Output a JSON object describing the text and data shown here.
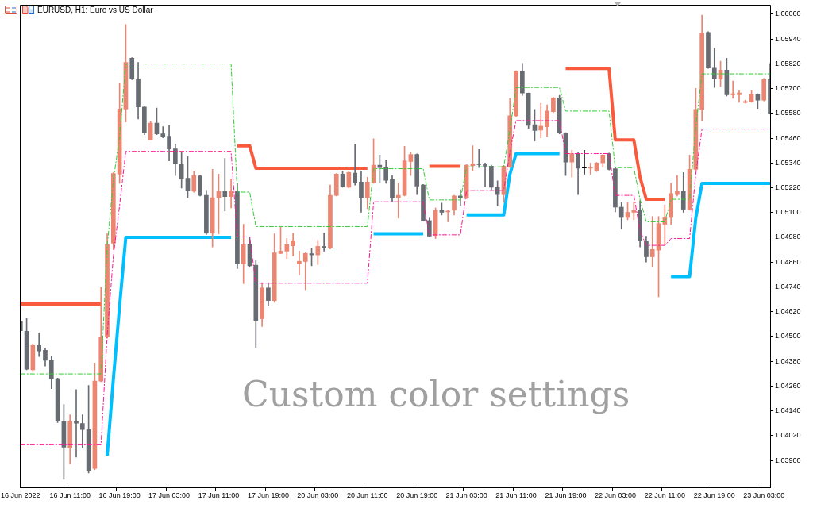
{
  "chart_data": {
    "type": "candlestick",
    "title": "EURUSD, H1: Euro vs US Dollar",
    "annotations": [
      "Custom color settings"
    ],
    "categories": [
      "16 Jun 2022",
      null,
      null,
      null,
      null,
      null,
      null,
      null,
      "16 Jun 11:00",
      null,
      null,
      null,
      null,
      null,
      null,
      null,
      "16 Jun 19:00",
      null,
      null,
      null,
      null,
      null,
      null,
      null,
      "17 Jun 03:00",
      null,
      null,
      null,
      null,
      null,
      null,
      null,
      "17 Jun 11:00",
      null,
      null,
      null,
      null,
      null,
      null,
      null,
      "17 Jun 19:00",
      null,
      null,
      null,
      null,
      null,
      null,
      null,
      "20 Jun 03:00",
      null,
      null,
      null,
      null,
      null,
      null,
      null,
      "20 Jun 11:00",
      null,
      null,
      null,
      null,
      null,
      null,
      null,
      "20 Jun 19:00",
      null,
      null,
      null,
      null,
      null,
      null,
      null,
      "21 Jun 03:00",
      null,
      null,
      null,
      null,
      null,
      null,
      null,
      "21 Jun 11:00",
      null,
      null,
      null,
      null,
      null,
      null,
      null,
      "21 Jun 19:00",
      null,
      null,
      null,
      null,
      null,
      null,
      null,
      "22 Jun 03:00",
      null,
      null,
      null,
      null,
      null,
      null,
      null,
      "22 Jun 11:00",
      null,
      null,
      null,
      null,
      null,
      null,
      null,
      "22 Jun 19:00",
      null,
      null,
      null,
      null,
      null,
      null,
      null,
      "23 Jun 03:00",
      null
    ],
    "ohlc": [
      [
        1.04574,
        1.04586,
        1.04517,
        1.04528
      ],
      [
        1.04525,
        1.04589,
        1.04339,
        1.04342
      ],
      [
        1.04339,
        1.04464,
        1.0433,
        1.04456
      ],
      [
        1.04456,
        1.04517,
        1.04403,
        1.0443
      ],
      [
        1.04433,
        1.04444,
        1.04357,
        1.04385
      ],
      [
        1.04385,
        1.04403,
        1.04248,
        1.04296
      ],
      [
        1.04296,
        1.04299,
        1.04083,
        1.04091
      ],
      [
        1.04088,
        1.04171,
        1.03809,
        1.03964
      ],
      [
        1.03961,
        1.04121,
        1.03885,
        1.04091
      ],
      [
        1.04091,
        1.04243,
        1.03916,
        1.0408
      ],
      [
        1.04079,
        1.04121,
        1.03961,
        1.0405
      ],
      [
        1.0405,
        1.04263,
        1.03839,
        1.03852
      ],
      [
        1.03862,
        1.04372,
        1.03855,
        1.04284
      ],
      [
        1.04284,
        1.04738,
        1.04281,
        1.04499
      ],
      [
        1.04497,
        1.04997,
        1.04491,
        1.04944
      ],
      [
        1.04951,
        1.05294,
        1.04921,
        1.05289
      ],
      [
        1.05286,
        1.05728,
        1.05241,
        1.05601
      ],
      [
        1.05601,
        1.0601,
        1.05538,
        1.05827
      ],
      [
        1.05847,
        1.0585,
        1.05743,
        1.05746
      ],
      [
        1.05746,
        1.05827,
        1.05553,
        1.05611
      ],
      [
        1.05611,
        1.05614,
        1.05477,
        1.05484
      ],
      [
        1.05454,
        1.05542,
        1.05451,
        1.05533
      ],
      [
        1.05533,
        1.05606,
        1.05477,
        1.05481
      ],
      [
        1.05481,
        1.05515,
        1.05461,
        1.05466
      ],
      [
        1.05469,
        1.05522,
        1.0535,
        1.05408
      ],
      [
        1.05408,
        1.05431,
        1.05279,
        1.05336
      ],
      [
        1.05336,
        1.0539,
        1.05218,
        1.05263
      ],
      [
        1.05266,
        1.0537,
        1.05172,
        1.05206
      ],
      [
        1.05203,
        1.05301,
        1.05198,
        1.05279
      ],
      [
        1.05277,
        1.05282,
        1.0518,
        1.05183
      ],
      [
        1.05183,
        1.05207,
        1.04994,
        1.05
      ],
      [
        1.05,
        1.05309,
        1.04933,
        1.05172
      ],
      [
        1.05172,
        1.05286,
        1.04997,
        1.05203
      ],
      [
        1.05203,
        1.05362,
        1.05107,
        1.05177
      ],
      [
        1.05177,
        1.05263,
        1.05122,
        1.05203
      ],
      [
        1.05203,
        1.05241,
        1.04829,
        1.04852
      ],
      [
        1.04852,
        1.05043,
        1.04756,
        1.04944
      ],
      [
        1.04944,
        1.04982,
        1.04837,
        1.04842
      ],
      [
        1.04845,
        1.04867,
        1.04446,
        1.04578
      ],
      [
        1.04586,
        1.04761,
        1.04548,
        1.04735
      ],
      [
        1.04735,
        1.04761,
        1.0465,
        1.04674
      ],
      [
        1.04674,
        1.04997,
        1.04665,
        1.04905
      ],
      [
        1.04902,
        1.0503,
        1.04901,
        1.04913
      ],
      [
        1.04913,
        1.04974,
        1.04878,
        1.04944
      ],
      [
        1.04939,
        1.05,
        1.0489,
        1.04963
      ],
      [
        1.04852,
        1.04913,
        1.04799,
        1.04864
      ],
      [
        1.04863,
        1.04905,
        1.04726,
        1.04902
      ],
      [
        1.04901,
        1.04928,
        1.04842,
        1.04895
      ],
      [
        1.04895,
        1.04966,
        1.04848,
        1.04936
      ],
      [
        1.04936,
        1.05001,
        1.04913,
        1.04928
      ],
      [
        1.04928,
        1.05233,
        1.04924,
        1.05183
      ],
      [
        1.05183,
        1.05289,
        1.0518,
        1.05286
      ],
      [
        1.05286,
        1.05301,
        1.05222,
        1.05225
      ],
      [
        1.05222,
        1.05301,
        1.05218,
        1.05294
      ],
      [
        1.05291,
        1.05431,
        1.05233,
        1.05244
      ],
      [
        1.05248,
        1.05301,
        1.05101,
        1.05172
      ],
      [
        1.05172,
        1.05271,
        1.05119,
        1.05248
      ],
      [
        1.05244,
        1.05457,
        1.05241,
        1.05329
      ],
      [
        1.05329,
        1.05378,
        1.05244,
        1.05317
      ],
      [
        1.05321,
        1.05355,
        1.05241,
        1.05256
      ],
      [
        1.05259,
        1.05279,
        1.05152,
        1.05172
      ],
      [
        1.05172,
        1.05244,
        1.05073,
        1.05183
      ],
      [
        1.05183,
        1.0542,
        1.0518,
        1.0535
      ],
      [
        1.05347,
        1.0539,
        1.05279,
        1.05381
      ],
      [
        1.05381,
        1.05384,
        1.05187,
        1.05228
      ],
      [
        1.05233,
        1.05236,
        1.05058,
        1.05061
      ],
      [
        1.05061,
        1.05073,
        1.04982,
        1.04986
      ],
      [
        1.04989,
        1.05122,
        1.04974,
        1.05111
      ],
      [
        1.05111,
        1.05146,
        1.05088,
        1.05101
      ],
      [
        1.05103,
        1.05111,
        1.05055,
        1.05107
      ],
      [
        1.05111,
        1.05183,
        1.05088,
        1.0518
      ],
      [
        1.0518,
        1.0521,
        1.05134,
        1.05172
      ],
      [
        1.05172,
        1.05332,
        1.05167,
        1.05329
      ],
      [
        1.05327,
        1.05423,
        1.05301,
        1.05336
      ],
      [
        1.05336,
        1.05405,
        1.05317,
        1.05332
      ],
      [
        1.05336,
        1.0534,
        1.05225,
        1.05324
      ],
      [
        1.05324,
        1.05329,
        1.0521,
        1.05222
      ],
      [
        1.05222,
        1.05253,
        1.05131,
        1.05187
      ],
      [
        1.05187,
        1.05327,
        1.05149,
        1.05324
      ],
      [
        1.0532,
        1.05652,
        1.05317,
        1.05568
      ],
      [
        1.05568,
        1.05786,
        1.05563,
        1.05784
      ],
      [
        1.05784,
        1.05822,
        1.05667,
        1.05678
      ],
      [
        1.05678,
        1.05679,
        1.05507,
        1.05522
      ],
      [
        1.05525,
        1.05599,
        1.05446,
        1.05497
      ],
      [
        1.05499,
        1.05629,
        1.05461,
        1.05518
      ],
      [
        1.05515,
        1.05621,
        1.05469,
        1.05591
      ],
      [
        1.05588,
        1.05659,
        1.05583,
        1.05655
      ],
      [
        1.05655,
        1.05667,
        1.05481,
        1.05484
      ],
      [
        1.05484,
        1.05487,
        1.05279,
        1.05344
      ],
      [
        1.05344,
        1.05401,
        1.05271,
        1.05385
      ],
      [
        1.05385,
        1.05393,
        1.05187,
        1.05314
      ],
      [
        1.05315,
        1.05401,
        1.05286,
        1.05315
      ],
      [
        1.05314,
        1.0534,
        1.05286,
        1.05318
      ],
      [
        1.05301,
        1.05343,
        1.05298,
        1.0534
      ],
      [
        1.0534,
        1.05381,
        1.0532,
        1.05378
      ],
      [
        1.05385,
        1.05388,
        1.05306,
        1.05309
      ],
      [
        1.05312,
        1.05317,
        1.05103,
        1.05126
      ],
      [
        1.05126,
        1.05149,
        1.0502,
        1.05076
      ],
      [
        1.05076,
        1.05149,
        1.05065,
        1.05101
      ],
      [
        1.05101,
        1.05152,
        1.05065,
        1.05111
      ],
      [
        1.05111,
        1.05157,
        1.04933,
        1.04963
      ],
      [
        1.04963,
        1.04985,
        1.0486,
        1.04886
      ],
      [
        1.04886,
        1.05081,
        1.04837,
        1.04921
      ],
      [
        1.04918,
        1.05081,
        1.04692,
        1.05046
      ],
      [
        1.05043,
        1.05137,
        1.04944,
        1.05076
      ],
      [
        1.05076,
        1.05244,
        1.05043,
        1.05192
      ],
      [
        1.05187,
        1.05279,
        1.0518,
        1.05203
      ],
      [
        1.05203,
        1.05294,
        1.05101,
        1.05116
      ],
      [
        1.05116,
        1.05378,
        1.05111,
        1.05309
      ],
      [
        1.05309,
        1.05701,
        1.05305,
        1.05599
      ],
      [
        1.05599,
        1.06055,
        1.05545,
        1.05969
      ],
      [
        1.05972,
        1.05975,
        1.05797,
        1.05799
      ],
      [
        1.05799,
        1.05895,
        1.05705,
        1.05746
      ],
      [
        1.05746,
        1.05832,
        1.0571,
        1.05789
      ],
      [
        1.05789,
        1.05847,
        1.05664,
        1.0567
      ],
      [
        1.0567,
        1.05736,
        1.05652,
        1.05675
      ],
      [
        1.0567,
        1.0569,
        1.05633,
        1.05679
      ],
      [
        1.05632,
        1.05644,
        1.05629,
        1.05637
      ],
      [
        1.05637,
        1.0569,
        1.05633,
        1.05672
      ],
      [
        1.05672,
        1.05675,
        1.05603,
        1.05644
      ],
      [
        1.05644,
        1.05749,
        1.0564,
        1.05743
      ],
      [
        1.05743,
        1.05822,
        1.05576,
        1.05579
      ]
    ],
    "colors": [
      "#676b72",
      "#676b72",
      "#ea8672",
      "#676b72",
      "#676b72",
      "#676b72",
      "#676b72",
      "#676b72",
      "#ea8672",
      "#676b72",
      "#676b72",
      "#676b72",
      "#ea8672",
      "#ea8672",
      "#ea8672",
      "#ea8672",
      "#ea8672",
      "#ea8672",
      "#676b72",
      "#676b72",
      "#676b72",
      "#ea8672",
      "#676b72",
      "#676b72",
      "#676b72",
      "#676b72",
      "#676b72",
      "#676b72",
      "#ea8672",
      "#676b72",
      "#676b72",
      "#ea8672",
      "#ea8672",
      "#676b72",
      "#ea8672",
      "#676b72",
      "#ea8672",
      "#676b72",
      "#676b72",
      "#ea8672",
      "#676b72",
      "#ea8672",
      "#ea8672",
      "#ea8672",
      "#ea8672",
      "#ea8672",
      "#ea8672",
      "#676b72",
      "#ea8672",
      "#676b72",
      "#ea8672",
      "#ea8672",
      "#676b72",
      "#ea8672",
      "#676b72",
      "#676b72",
      "#ea8672",
      "#ea8672",
      "#676b72",
      "#676b72",
      "#676b72",
      "#ea8672",
      "#ea8672",
      "#ea8672",
      "#676b72",
      "#676b72",
      "#676b72",
      "#ea8672",
      "#676b72",
      "#ea8672",
      "#ea8672",
      "#676b72",
      "#ea8672",
      "#ea8672",
      "#676b72",
      "#676b72",
      "#676b72",
      "#676b72",
      "#ea8672",
      "#ea8672",
      "#ea8672",
      "#676b72",
      "#676b72",
      "#676b72",
      "#ea8672",
      "#ea8672",
      "#ea8672",
      "#676b72",
      "#676b72",
      "#ea8672",
      "#676b72",
      "#000000",
      "#ea8672",
      "#ea8672",
      "#ea8672",
      "#676b72",
      "#676b72",
      "#676b72",
      "#ea8672",
      "#ea8672",
      "#676b72",
      "#676b72",
      "#ea8672",
      "#ea8672",
      "#ea8672",
      "#ea8672",
      "#ea8672",
      "#676b72",
      "#ea8672",
      "#ea8672",
      "#ea8672",
      "#676b72",
      "#676b72",
      "#ea8672",
      "#676b72",
      "#ea8672",
      "#ea8672",
      "#ea8672",
      "#ea8672",
      "#676b72",
      "#ea8672",
      "#676b72"
    ],
    "series": [
      {
        "type": "line",
        "color": "#fa5a3c",
        "line_style": "solid",
        "values": [
          1.04657,
          1.04657,
          1.04657,
          1.04657,
          1.04657,
          1.04657,
          1.04657,
          1.04657,
          1.04657,
          1.04657,
          1.04657,
          1.04657,
          1.04657,
          1.04657,
          null,
          null,
          null,
          null,
          null,
          null,
          null,
          null,
          null,
          null,
          null,
          null,
          null,
          null,
          null,
          null,
          null,
          null,
          null,
          null,
          null,
          1.05423,
          1.05423,
          1.05423,
          1.05314,
          1.05314,
          1.05314,
          1.05314,
          1.05314,
          1.05314,
          1.05314,
          1.05314,
          1.05314,
          1.05314,
          1.05314,
          1.05314,
          1.05314,
          1.05314,
          1.05314,
          1.05314,
          1.05314,
          1.05314,
          1.05314,
          null,
          null,
          null,
          null,
          null,
          null,
          null,
          null,
          null,
          1.05324,
          1.05324,
          1.05324,
          1.05324,
          1.05324,
          1.05324,
          null,
          null,
          null,
          null,
          null,
          null,
          null,
          null,
          null,
          null,
          null,
          null,
          null,
          null,
          null,
          null,
          1.05797,
          1.05797,
          1.05797,
          1.05797,
          1.05797,
          1.05797,
          1.05797,
          1.05797,
          1.05451,
          1.05451,
          1.05451,
          1.05451,
          1.05271,
          1.05164,
          1.05164,
          1.05164,
          1.05164,
          null,
          null,
          null,
          null,
          null,
          null,
          null,
          null,
          null,
          null,
          null,
          null,
          null,
          null,
          null,
          null,
          null
        ]
      },
      {
        "type": "line",
        "color": "#00bfff",
        "line_style": "solid",
        "values": [
          null,
          null,
          null,
          null,
          null,
          null,
          null,
          null,
          null,
          null,
          null,
          null,
          null,
          null,
          1.03923,
          1.04296,
          1.04647,
          1.0498,
          1.0498,
          1.0498,
          1.0498,
          1.0498,
          1.0498,
          1.0498,
          1.0498,
          1.0498,
          1.0498,
          1.0498,
          1.0498,
          1.0498,
          1.0498,
          1.0498,
          1.0498,
          1.0498,
          1.0498,
          null,
          null,
          null,
          null,
          null,
          null,
          null,
          null,
          null,
          null,
          null,
          null,
          null,
          null,
          null,
          null,
          null,
          null,
          null,
          null,
          null,
          null,
          1.04997,
          1.04997,
          1.04997,
          1.04997,
          1.04997,
          1.04997,
          1.04997,
          1.04997,
          1.04997,
          null,
          null,
          null,
          null,
          null,
          null,
          1.05088,
          1.05088,
          1.05088,
          1.05088,
          1.05088,
          1.05088,
          1.05088,
          1.05286,
          1.05385,
          1.05385,
          1.05385,
          1.05385,
          1.05385,
          1.05385,
          1.05385,
          1.05385,
          null,
          null,
          null,
          null,
          null,
          null,
          null,
          null,
          null,
          null,
          null,
          null,
          null,
          null,
          null,
          null,
          null,
          1.0479,
          1.0479,
          1.0479,
          1.0479,
          1.05073,
          1.05241,
          1.05241,
          1.05241,
          1.05241,
          1.05241,
          1.05241,
          1.05241,
          1.05241,
          1.05241,
          1.05241,
          1.05241,
          1.05241
        ]
      },
      {
        "type": "line",
        "color": "#32cd32",
        "line_style": "dashed",
        "values": [
          1.04319,
          1.04319,
          1.04319,
          1.04319,
          1.04319,
          1.04319,
          1.04319,
          1.04319,
          1.04319,
          1.04319,
          1.04319,
          1.04319,
          1.04319,
          1.04319,
          1.04936,
          1.05256,
          1.05469,
          1.05819,
          1.05819,
          1.05819,
          1.05819,
          1.05819,
          1.05819,
          1.05819,
          1.05819,
          1.05819,
          1.05819,
          1.05819,
          1.05819,
          1.05819,
          1.05819,
          1.05819,
          1.05819,
          1.05819,
          1.05819,
          1.05199,
          1.05199,
          1.05199,
          1.05032,
          1.05032,
          1.05032,
          1.05032,
          1.05032,
          1.05032,
          1.05032,
          1.05032,
          1.05032,
          1.05032,
          1.05032,
          1.05032,
          1.05032,
          1.05032,
          1.05032,
          1.05032,
          1.05032,
          1.05032,
          1.05032,
          1.05312,
          1.05312,
          1.05312,
          1.05312,
          1.05312,
          1.05312,
          1.05312,
          1.05312,
          1.05312,
          1.05161,
          1.05161,
          1.05161,
          1.05161,
          1.05161,
          1.05161,
          1.05321,
          1.05321,
          1.05321,
          1.05321,
          1.05321,
          1.05321,
          1.05321,
          1.05499,
          1.05705,
          1.05705,
          1.05705,
          1.05705,
          1.05705,
          1.05705,
          1.05705,
          1.05705,
          1.05591,
          1.05591,
          1.05591,
          1.05591,
          1.05591,
          1.05591,
          1.05591,
          1.05591,
          1.05317,
          1.05317,
          1.05317,
          1.05317,
          1.05164,
          1.05055,
          1.05055,
          1.05055,
          1.05055,
          1.05164,
          1.05164,
          1.05164,
          1.05164,
          1.05515,
          1.05771,
          1.05771,
          1.05771,
          1.05771,
          1.05771,
          1.05771,
          1.05771,
          1.05771,
          1.05771,
          1.05771,
          1.05771,
          1.05771
        ]
      },
      {
        "type": "line",
        "color": "#ff1493",
        "line_style": "dashed",
        "values": [
          1.03976,
          1.03976,
          1.03976,
          1.03976,
          1.03976,
          1.03976,
          1.03976,
          1.03976,
          1.03976,
          1.03976,
          1.03976,
          1.03976,
          1.03976,
          1.03976,
          1.04509,
          1.0489,
          1.05134,
          1.05396,
          1.05396,
          1.05396,
          1.05396,
          1.05396,
          1.05396,
          1.05396,
          1.05396,
          1.05396,
          1.05396,
          1.05396,
          1.05396,
          1.05396,
          1.05396,
          1.05396,
          1.05396,
          1.05396,
          1.05396,
          1.04982,
          1.04982,
          1.04982,
          1.04758,
          1.04758,
          1.04758,
          1.04758,
          1.04758,
          1.04758,
          1.04758,
          1.04758,
          1.04758,
          1.04758,
          1.04758,
          1.04758,
          1.04758,
          1.04758,
          1.04758,
          1.04758,
          1.04758,
          1.04758,
          1.04758,
          1.05152,
          1.05152,
          1.05152,
          1.05152,
          1.05152,
          1.05152,
          1.05152,
          1.05152,
          1.05152,
          1.04992,
          1.04992,
          1.04992,
          1.04992,
          1.04992,
          1.04992,
          1.05206,
          1.05206,
          1.05206,
          1.05206,
          1.05206,
          1.05206,
          1.05206,
          1.05393,
          1.05545,
          1.05545,
          1.05545,
          1.05545,
          1.05545,
          1.05545,
          1.05545,
          1.05545,
          1.05385,
          1.05385,
          1.05385,
          1.05385,
          1.05385,
          1.05385,
          1.05385,
          1.05385,
          1.05183,
          1.05183,
          1.05183,
          1.05183,
          1.05012,
          1.04941,
          1.04941,
          1.04941,
          1.04941,
          1.04974,
          1.04974,
          1.04974,
          1.04974,
          1.05286,
          1.05504,
          1.05504,
          1.05504,
          1.05504,
          1.05504,
          1.05504,
          1.05504,
          1.05504,
          1.05504,
          1.05504,
          1.05504,
          1.05504
        ]
      }
    ],
    "ylim": [
      1.0377,
      1.061
    ],
    "yticks": [
      {
        "value": 1.039,
        "label": "1.03900"
      },
      {
        "value": 1.0402,
        "label": "1.04020"
      },
      {
        "value": 1.0414,
        "label": "1.04140"
      },
      {
        "value": 1.0426,
        "label": "1.04260"
      },
      {
        "value": 1.0438,
        "label": "1.04380"
      },
      {
        "value": 1.045,
        "label": "1.04500"
      },
      {
        "value": 1.0462,
        "label": "1.04620"
      },
      {
        "value": 1.0474,
        "label": "1.04740"
      },
      {
        "value": 1.0486,
        "label": "1.04860"
      },
      {
        "value": 1.0498,
        "label": "1.04980"
      },
      {
        "value": 1.051,
        "label": "1.05100"
      },
      {
        "value": 1.0522,
        "label": "1.05220"
      },
      {
        "value": 1.0534,
        "label": "1.05340"
      },
      {
        "value": 1.0546,
        "label": "1.05460"
      },
      {
        "value": 1.0558,
        "label": "1.05580"
      },
      {
        "value": 1.057,
        "label": "1.05700"
      },
      {
        "value": 1.0582,
        "label": "1.05820"
      },
      {
        "value": 1.0594,
        "label": "1.05940"
      },
      {
        "value": 1.0606,
        "label": "1.06060"
      }
    ]
  }
}
